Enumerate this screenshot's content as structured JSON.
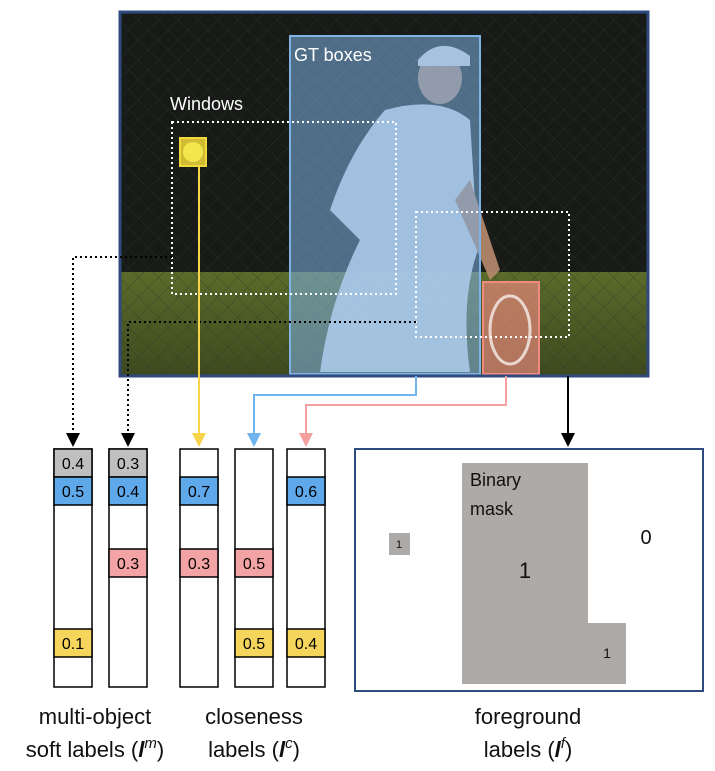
{
  "photo": {
    "gt_label": "GT boxes",
    "windows_label": "Windows"
  },
  "colors": {
    "frame": "#2e4a7f",
    "gt_fill": "#7fb3e6",
    "gt_stroke": "#7fb3e6",
    "ball": "#f0d93a",
    "racket": "#f08a80",
    "yellow_arrow": "#f7d44a",
    "blue_arrow": "#6fb4ee",
    "pink_arrow": "#f5a0a0",
    "cell_gray": "#bfbfbf",
    "cell_blue": "#5fa8ea",
    "cell_pink": "#f3a3a3",
    "cell_yellow": "#f6d55c",
    "mask_gray": "#adaaa7"
  },
  "bars": {
    "multi1": [
      "0.4",
      "0.5",
      "0.1"
    ],
    "multi2": [
      "0.3",
      "0.4",
      "0.3"
    ],
    "close1": [
      "0.7",
      "0.3"
    ],
    "close2": [
      "0.5",
      "0.5"
    ],
    "close3": [
      "0.6",
      "0.4"
    ]
  },
  "foreground": {
    "binary": "Binary",
    "mask": "mask",
    "one_big": "1",
    "zero": "0",
    "one_small_a": "1",
    "one_small_b": "1"
  },
  "captions": {
    "multi_line1": "multi-object",
    "multi_line2": "soft labels (",
    "multi_sym": "l",
    "multi_sup": "m",
    "close_line1": "closeness",
    "close_line2": "labels (",
    "close_sym": "l",
    "close_sup": "c",
    "fg_line1": "foreground",
    "fg_line2": "labels (",
    "fg_sym": "l",
    "fg_sup": "f",
    "close_paren": ")"
  }
}
